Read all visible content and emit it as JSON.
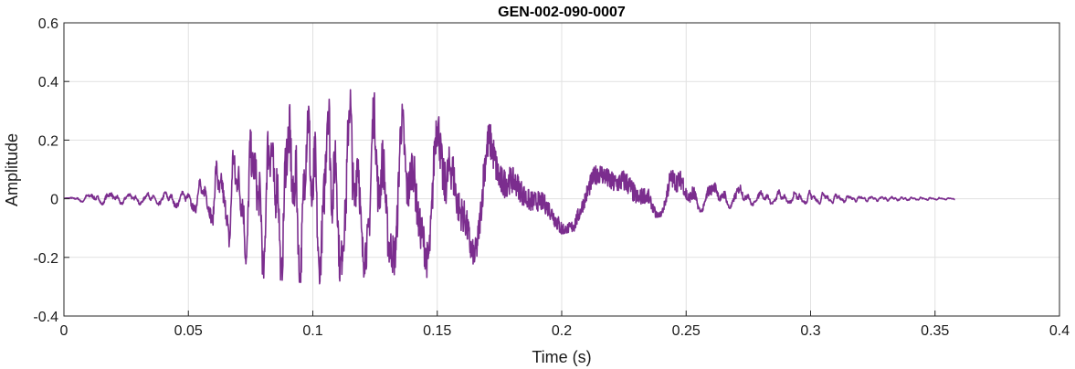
{
  "chart_data": {
    "type": "line",
    "title": "GEN-002-090-0007",
    "xlabel": "Time (s)",
    "ylabel": "Amplitude",
    "xlim": [
      0,
      0.4
    ],
    "ylim": [
      -0.4,
      0.6
    ],
    "xticks": [
      0,
      0.05,
      0.1,
      0.15,
      0.2,
      0.25,
      0.3,
      0.35,
      0.4
    ],
    "xtick_labels": [
      "0",
      "0.05",
      "0.1",
      "0.15",
      "0.2",
      "0.25",
      "0.3",
      "0.35",
      "0.4"
    ],
    "yticks": [
      -0.4,
      -0.2,
      0,
      0.2,
      0.4,
      0.6
    ],
    "ytick_labels": [
      "-0.4",
      "-0.2",
      "0",
      "0.2",
      "0.4",
      "0.6"
    ],
    "grid": true,
    "line_color": "#7b2d8e",
    "series": [
      {
        "duration": 0.358,
        "envelope": [
          [
            0.0,
            0.002,
            0.002
          ],
          [
            0.015,
            0.03,
            0.02
          ],
          [
            0.03,
            0.02,
            0.02
          ],
          [
            0.05,
            0.03,
            0.04
          ],
          [
            0.06,
            0.12,
            0.1
          ],
          [
            0.07,
            0.22,
            0.2
          ],
          [
            0.08,
            0.33,
            0.27
          ],
          [
            0.09,
            0.39,
            0.28
          ],
          [
            0.1,
            0.42,
            0.29
          ],
          [
            0.11,
            0.44,
            0.29
          ],
          [
            0.12,
            0.38,
            0.29
          ],
          [
            0.13,
            0.34,
            0.3
          ],
          [
            0.14,
            0.31,
            0.28
          ],
          [
            0.15,
            0.32,
            0.26
          ],
          [
            0.16,
            0.32,
            0.24
          ],
          [
            0.17,
            0.28,
            0.2
          ],
          [
            0.18,
            0.18,
            0.18
          ],
          [
            0.19,
            0.15,
            0.13
          ],
          [
            0.2,
            0.13,
            0.12
          ],
          [
            0.21,
            0.13,
            0.1
          ],
          [
            0.22,
            0.15,
            0.09
          ],
          [
            0.23,
            0.16,
            0.08
          ],
          [
            0.24,
            0.14,
            0.06
          ],
          [
            0.25,
            0.13,
            0.05
          ],
          [
            0.26,
            0.07,
            0.04
          ],
          [
            0.27,
            0.06,
            0.03
          ],
          [
            0.28,
            0.03,
            0.02
          ],
          [
            0.3,
            0.03,
            0.02
          ],
          [
            0.32,
            0.01,
            0.01
          ],
          [
            0.358,
            0.003,
            0.003
          ]
        ]
      }
    ]
  }
}
